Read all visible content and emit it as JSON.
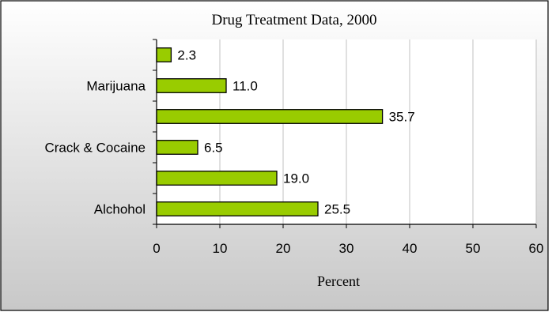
{
  "chart_data": {
    "type": "bar",
    "orientation": "horizontal",
    "title": "Drug Treatment Data, 2000",
    "xlabel": "Percent",
    "ylabel": "",
    "categories": [
      "Alchohol",
      "",
      "Crack & Cocaine",
      "",
      "Marijuana",
      ""
    ],
    "values": [
      25.5,
      19.0,
      6.5,
      35.7,
      11.0,
      2.3
    ],
    "value_labels": [
      "25.5",
      "19.0",
      "6.5",
      "35.7",
      "11.0",
      "2.3"
    ],
    "xlim": [
      0,
      60
    ],
    "xticks": [
      "0",
      "10",
      "20",
      "30",
      "40",
      "50",
      "60"
    ],
    "grid": true,
    "legend": "none",
    "colors": {
      "bar_fill": "#99cc00",
      "bar_stroke": "#000000",
      "plot_bg": "#ffffff",
      "frame_bg_top": "#ffffff",
      "frame_bg_bottom": "#c8c8c8",
      "grid": "#c0c0c0"
    }
  }
}
